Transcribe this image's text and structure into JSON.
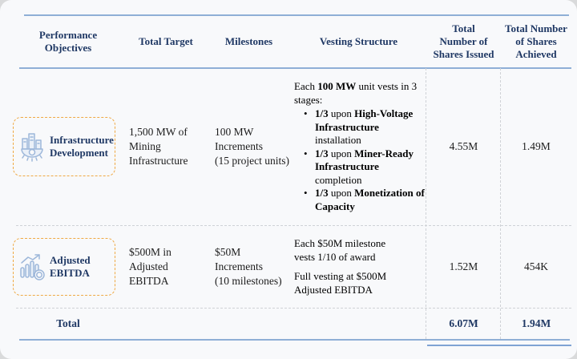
{
  "table": {
    "columns": [
      {
        "label": "Performance\nObjectives"
      },
      {
        "label": "Total Target"
      },
      {
        "label": "Milestones"
      },
      {
        "label": "Vesting Structure"
      },
      {
        "label": "Total\nNumber of\nShares Issued"
      },
      {
        "label": "Total Number\nof Shares\nAchieved"
      }
    ],
    "rows": [
      {
        "objective": {
          "label": "Infrastructure\nDevelopment",
          "icon": "infrastructure-icon"
        },
        "total_target": "1,500 MW of\nMining\nInfrastructure",
        "milestones": "100 MW\nIncrements\n(15 project units)",
        "vesting": {
          "intro": [
            {
              "t": "Each ",
              "b": false
            },
            {
              "t": "100 MW",
              "b": true
            },
            {
              "t": " unit vests in 3 stages:",
              "b": false
            }
          ],
          "bullets": [
            [
              {
                "t": "1/3",
                "b": true
              },
              {
                "t": " upon ",
                "b": false
              },
              {
                "t": "High-Voltage Infrastructure",
                "b": true
              },
              {
                "t": " installation",
                "b": false
              }
            ],
            [
              {
                "t": "1/3",
                "b": true
              },
              {
                "t": " upon ",
                "b": false
              },
              {
                "t": "Miner-Ready Infrastructure",
                "b": true
              },
              {
                "t": " completion",
                "b": false
              }
            ],
            [
              {
                "t": "1/3",
                "b": true
              },
              {
                "t": " upon ",
                "b": false
              },
              {
                "t": "Monetization of Capacity",
                "b": true
              }
            ]
          ]
        },
        "shares_issued": "4.55M",
        "shares_achieved": "1.49M"
      },
      {
        "objective": {
          "label": "Adjusted\nEBITDA",
          "icon": "ebitda-icon"
        },
        "total_target": "$500M in\nAdjusted\nEBITDA",
        "milestones": "$50M\nIncrements\n(10 milestones)",
        "vesting": {
          "paragraphs": [
            "Each $50M milestone\nvests 1/10 of award",
            "Full vesting at $500M\nAdjusted EBITDA"
          ]
        },
        "shares_issued": "1.52M",
        "shares_achieved": "454K"
      }
    ],
    "total_row": {
      "label": "Total",
      "shares_issued": "6.07M",
      "shares_achieved": "1.94M"
    }
  },
  "colors": {
    "navy": "#1f3864",
    "line_blue": "#8fafd6",
    "underline_blue": "#7fa3d4",
    "dashed_gray": "#cfd2d6",
    "accent_orange": "#efa944",
    "icon_blue": "#9db7da",
    "card_bg": "#f8f9fb"
  }
}
